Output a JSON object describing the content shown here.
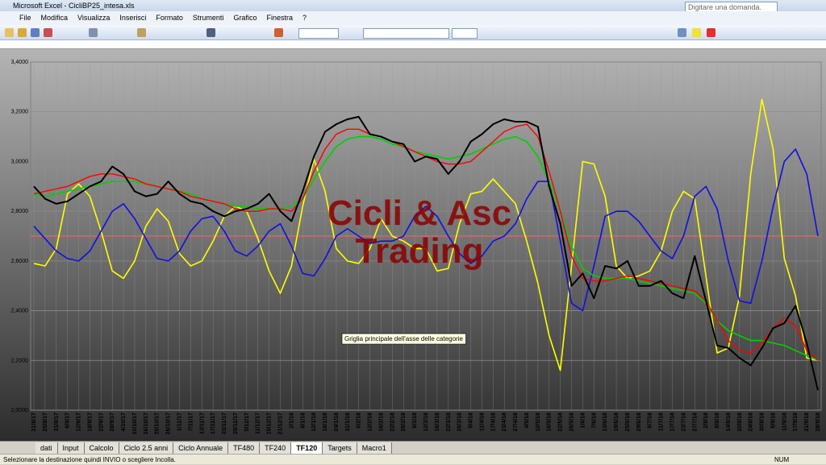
{
  "window": {
    "title": "Microsoft Excel - CicliBP25_intesa.xls",
    "help_box": "Digitare una domanda."
  },
  "menu": [
    "File",
    "Modifica",
    "Visualizza",
    "Inserisci",
    "Formato",
    "Strumenti",
    "Grafico",
    "Finestra",
    "?"
  ],
  "chart_data": {
    "type": "line",
    "watermark": [
      "Cicli & Asc",
      "Trading"
    ],
    "tooltip": "Griglia principale dell'asse delle categorie",
    "categories": [
      "21/8/17",
      "25/8/17",
      "31/8/17",
      "6/9/17",
      "12/9/17",
      "18/9/17",
      "22/9/17",
      "28/9/17",
      "4/10/17",
      "10/10/17",
      "16/10/17",
      "20/10/17",
      "26/10/17",
      "1/11/17",
      "7/11/17",
      "13/11/17",
      "17/11/17",
      "23/11/17",
      "29/11/17",
      "5/12/17",
      "11/12/17",
      "15/12/17",
      "21/12/17",
      "2/1/18",
      "8/1/18",
      "12/1/18",
      "18/1/18",
      "24/1/18",
      "31/1/18",
      "6/2/18",
      "12/2/18",
      "16/2/18",
      "22/2/18",
      "28/2/18",
      "6/3/18",
      "12/3/18",
      "16/3/18",
      "22/3/18",
      "28/3/18",
      "5/4/18",
      "11/4/18",
      "17/4/18",
      "23/4/18",
      "27/4/18",
      "4/5/18",
      "10/5/18",
      "16/5/18",
      "22/5/18",
      "28/5/18",
      "1/6/18",
      "7/6/18",
      "13/6/18",
      "19/6/18",
      "25/6/18",
      "29/6/18",
      "5/7/18",
      "11/7/18",
      "17/7/18",
      "23/7/18",
      "27/7/18",
      "2/8/18",
      "8/8/18",
      "14/8/18",
      "20/8/18",
      "24/8/18",
      "30/8/18",
      "5/9/18",
      "11/9/18",
      "17/9/18",
      "21/9/18",
      "28/9/18"
    ],
    "series": [
      {
        "color": "#ffff00",
        "width": 1.6,
        "values": [
          2590,
          2580,
          2650,
          2870,
          2910,
          2860,
          2720,
          2560,
          2530,
          2600,
          2740,
          2810,
          2760,
          2630,
          2580,
          2600,
          2680,
          2780,
          2820,
          2800,
          2690,
          2560,
          2470,
          2580,
          2820,
          3010,
          2880,
          2650,
          2600,
          2590,
          2650,
          2770,
          2700,
          2680,
          2650,
          2650,
          2560,
          2570,
          2750,
          2870,
          2880,
          2930,
          2880,
          2830,
          2680,
          2510,
          2300,
          2160,
          2580,
          3000,
          2990,
          2860,
          2580,
          2530,
          2540,
          2560,
          2640,
          2800,
          2880,
          2850,
          2540,
          2230,
          2250,
          2460,
          2950,
          3250,
          3050,
          2610,
          2460,
          2210,
          2200
        ]
      },
      {
        "color": "#1010e0",
        "width": 1.6,
        "values": [
          2740,
          2690,
          2640,
          2610,
          2600,
          2640,
          2720,
          2800,
          2830,
          2770,
          2690,
          2610,
          2600,
          2640,
          2720,
          2770,
          2780,
          2720,
          2640,
          2620,
          2660,
          2720,
          2750,
          2660,
          2550,
          2540,
          2610,
          2700,
          2730,
          2700,
          2670,
          2680,
          2680,
          2700,
          2780,
          2820,
          2780,
          2700,
          2630,
          2590,
          2620,
          2680,
          2700,
          2750,
          2850,
          2920,
          2920,
          2680,
          2430,
          2400,
          2580,
          2780,
          2800,
          2800,
          2760,
          2700,
          2640,
          2610,
          2700,
          2860,
          2900,
          2810,
          2600,
          2440,
          2430,
          2600,
          2820,
          3000,
          3050,
          2950,
          2700
        ]
      },
      {
        "color": "#00d000",
        "width": 1.6,
        "values": [
          2870,
          2860,
          2870,
          2880,
          2890,
          2900,
          2910,
          2920,
          2920,
          2920,
          2910,
          2900,
          2890,
          2880,
          2870,
          2850,
          2840,
          2830,
          2820,
          2820,
          2810,
          2810,
          2810,
          2820,
          2850,
          2930,
          3000,
          3060,
          3090,
          3100,
          3100,
          3090,
          3070,
          3060,
          3040,
          3030,
          3020,
          3010,
          3020,
          3030,
          3050,
          3070,
          3090,
          3100,
          3080,
          3020,
          2920,
          2800,
          2660,
          2570,
          2540,
          2530,
          2530,
          2530,
          2520,
          2510,
          2500,
          2490,
          2480,
          2470,
          2430,
          2360,
          2320,
          2300,
          2280,
          2280,
          2270,
          2260,
          2240,
          2220,
          2200
        ]
      },
      {
        "color": "#ff0000",
        "width": 1.4,
        "values": [
          2870,
          2880,
          2890,
          2900,
          2920,
          2940,
          2950,
          2950,
          2940,
          2930,
          2910,
          2900,
          2890,
          2880,
          2860,
          2850,
          2840,
          2830,
          2810,
          2800,
          2800,
          2810,
          2810,
          2800,
          2850,
          2960,
          3050,
          3110,
          3130,
          3130,
          3110,
          3100,
          3080,
          3060,
          3040,
          3020,
          3000,
          2990,
          2990,
          3000,
          3040,
          3080,
          3120,
          3140,
          3150,
          3100,
          2960,
          2800,
          2620,
          2530,
          2520,
          2520,
          2530,
          2540,
          2530,
          2520,
          2510,
          2500,
          2490,
          2480,
          2440,
          2360,
          2280,
          2240,
          2230,
          2270,
          2330,
          2370,
          2340,
          2240,
          2200
        ]
      },
      {
        "color": "#000000",
        "width": 2,
        "values": [
          2900,
          2850,
          2830,
          2840,
          2870,
          2900,
          2920,
          2980,
          2950,
          2880,
          2860,
          2870,
          2920,
          2870,
          2840,
          2830,
          2800,
          2780,
          2800,
          2810,
          2830,
          2870,
          2800,
          2760,
          2880,
          3020,
          3120,
          3150,
          3170,
          3180,
          3110,
          3100,
          3080,
          3070,
          3000,
          3020,
          3010,
          2950,
          3000,
          3080,
          3110,
          3150,
          3170,
          3160,
          3160,
          3140,
          2900,
          2750,
          2500,
          2550,
          2450,
          2580,
          2570,
          2600,
          2500,
          2500,
          2520,
          2470,
          2450,
          2620,
          2440,
          2260,
          2250,
          2210,
          2180,
          2250,
          2330,
          2350,
          2420,
          2270,
          2080
        ]
      }
    ],
    "reference_line": {
      "value": 2700,
      "color": "#ff6060"
    },
    "ylim": [
      2000,
      3400
    ],
    "yticks": [
      {
        "value": 2000,
        "label": "2,0000"
      },
      {
        "value": 2200,
        "label": "2,2000"
      },
      {
        "value": 2400,
        "label": "2,4000"
      },
      {
        "value": 2600,
        "label": "2,6000"
      },
      {
        "value": 2800,
        "label": "2,8000"
      },
      {
        "value": 3000,
        "label": "3,0000"
      },
      {
        "value": 3200,
        "label": "3,2000"
      },
      {
        "value": 3400,
        "label": "3,4000"
      }
    ],
    "grid": true
  },
  "sheet_tabs": [
    "dati",
    "Input",
    "Calcolo",
    "Ciclo 2.5 anni",
    "Ciclo Annuale",
    "TF480",
    "TF240",
    "TF120",
    "Targets",
    "Macro1"
  ],
  "active_tab": 7,
  "status_bar": {
    "message": "Selezionare la destinazione quindi INVIO o scegliere Incolla.",
    "indicator": "NUM"
  }
}
